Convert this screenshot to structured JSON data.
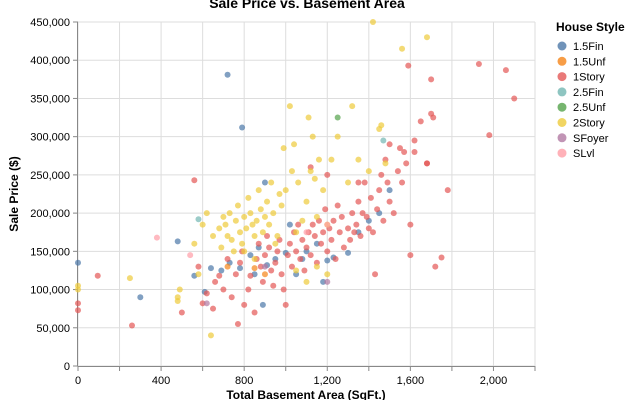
{
  "chart_data": {
    "type": "scatter",
    "title": "Sale Price vs. Basement Area",
    "xlabel": "Total Basement Area (SqFt.)",
    "ylabel": "Sale Price ($)",
    "xlim": [
      0,
      2200
    ],
    "ylim": [
      0,
      450000
    ],
    "x_ticks": [
      0,
      400,
      800,
      1200,
      1600,
      2000
    ],
    "x_tick_labels": [
      "0",
      "400",
      "800",
      "1,200",
      "1,600",
      "2,000"
    ],
    "y_ticks": [
      0,
      50000,
      100000,
      150000,
      200000,
      250000,
      300000,
      350000,
      400000,
      450000
    ],
    "y_tick_labels": [
      "0",
      "50,000",
      "100,000",
      "150,000",
      "200,000",
      "250,000",
      "300,000",
      "350,000",
      "400,000",
      "450,000"
    ],
    "grid": true,
    "legend_title": "House Style",
    "legend_position": "right",
    "series": [
      {
        "name": "1.5Fin",
        "color": "#4c78a8",
        "points": [
          [
            0,
            135000
          ],
          [
            300,
            90000
          ],
          [
            480,
            163000
          ],
          [
            560,
            118000
          ],
          [
            610,
            97000
          ],
          [
            640,
            128000
          ],
          [
            690,
            125000
          ],
          [
            720,
            381000
          ],
          [
            730,
            135000
          ],
          [
            780,
            128000
          ],
          [
            790,
            312000
          ],
          [
            830,
            145000
          ],
          [
            850,
            120000
          ],
          [
            870,
            155000
          ],
          [
            890,
            80000
          ],
          [
            900,
            240000
          ],
          [
            910,
            132000
          ],
          [
            950,
            140000
          ],
          [
            1000,
            148000
          ],
          [
            1020,
            185000
          ],
          [
            1050,
            120000
          ],
          [
            1080,
            140000
          ],
          [
            1100,
            150000
          ],
          [
            1150,
            160000
          ],
          [
            1200,
            138000
          ],
          [
            1230,
            142000
          ],
          [
            1300,
            148000
          ],
          [
            1350,
            175000
          ],
          [
            1400,
            190000
          ],
          [
            1450,
            200000
          ],
          [
            1500,
            230000
          ],
          [
            1180,
            110000
          ]
        ]
      },
      {
        "name": "1.5Unf",
        "color": "#f58518",
        "points": [
          [
            720,
            130000
          ],
          [
            850,
            128000
          ],
          [
            900,
            120000
          ]
        ]
      },
      {
        "name": "1Story",
        "color": "#e45756",
        "points": [
          [
            0,
            82000
          ],
          [
            0,
            73000
          ],
          [
            95,
            118000
          ],
          [
            260,
            53000
          ],
          [
            500,
            70000
          ],
          [
            560,
            243000
          ],
          [
            580,
            130000
          ],
          [
            600,
            82000
          ],
          [
            620,
            95000
          ],
          [
            650,
            75000
          ],
          [
            660,
            110000
          ],
          [
            680,
            118000
          ],
          [
            700,
            100000
          ],
          [
            720,
            140000
          ],
          [
            740,
            90000
          ],
          [
            760,
            120000
          ],
          [
            770,
            55000
          ],
          [
            780,
            135000
          ],
          [
            790,
            150000
          ],
          [
            800,
            80000
          ],
          [
            820,
            100000
          ],
          [
            830,
            118000
          ],
          [
            850,
            70000
          ],
          [
            860,
            140000
          ],
          [
            870,
            160000
          ],
          [
            880,
            130000
          ],
          [
            890,
            110000
          ],
          [
            900,
            145000
          ],
          [
            910,
            170000
          ],
          [
            920,
            155000
          ],
          [
            930,
            125000
          ],
          [
            940,
            105000
          ],
          [
            950,
            135000
          ],
          [
            960,
            150000
          ],
          [
            970,
            165000
          ],
          [
            980,
            120000
          ],
          [
            990,
            100000
          ],
          [
            1000,
            80000
          ],
          [
            1010,
            145000
          ],
          [
            1020,
            160000
          ],
          [
            1030,
            130000
          ],
          [
            1040,
            175000
          ],
          [
            1050,
            150000
          ],
          [
            1060,
            185000
          ],
          [
            1070,
            140000
          ],
          [
            1080,
            165000
          ],
          [
            1090,
            125000
          ],
          [
            1100,
            155000
          ],
          [
            1110,
            175000
          ],
          [
            1120,
            145000
          ],
          [
            1130,
            185000
          ],
          [
            1140,
            170000
          ],
          [
            1150,
            135000
          ],
          [
            1160,
            190000
          ],
          [
            1170,
            160000
          ],
          [
            1180,
            175000
          ],
          [
            1190,
            205000
          ],
          [
            1200,
            150000
          ],
          [
            1210,
            180000
          ],
          [
            1220,
            165000
          ],
          [
            1230,
            190000
          ],
          [
            1240,
            140000
          ],
          [
            1250,
            210000
          ],
          [
            1260,
            175000
          ],
          [
            1270,
            195000
          ],
          [
            1280,
            155000
          ],
          [
            1300,
            180000
          ],
          [
            1310,
            165000
          ],
          [
            1320,
            200000
          ],
          [
            1330,
            175000
          ],
          [
            1340,
            185000
          ],
          [
            1350,
            215000
          ],
          [
            1360,
            170000
          ],
          [
            1370,
            200000
          ],
          [
            1380,
            240000
          ],
          [
            1390,
            195000
          ],
          [
            1400,
            180000
          ],
          [
            1410,
            220000
          ],
          [
            1420,
            175000
          ],
          [
            1430,
            120000
          ],
          [
            1440,
            205000
          ],
          [
            1450,
            230000
          ],
          [
            1460,
            250000
          ],
          [
            1470,
            190000
          ],
          [
            1480,
            270000
          ],
          [
            1490,
            240000
          ],
          [
            1500,
            215000
          ],
          [
            1520,
            200000
          ],
          [
            1540,
            255000
          ],
          [
            1560,
            240000
          ],
          [
            1570,
            280000
          ],
          [
            1580,
            265000
          ],
          [
            1590,
            393000
          ],
          [
            1600,
            185000
          ],
          [
            1620,
            295000
          ],
          [
            1650,
            320000
          ],
          [
            1680,
            265000
          ],
          [
            1700,
            375000
          ],
          [
            1700,
            330000
          ],
          [
            1710,
            325000
          ],
          [
            1720,
            130000
          ],
          [
            1750,
            142000
          ],
          [
            1780,
            230000
          ],
          [
            1930,
            395000
          ],
          [
            1980,
            302000
          ],
          [
            2060,
            387000
          ],
          [
            2100,
            350000
          ],
          [
            1120,
            260000
          ],
          [
            1200,
            250000
          ],
          [
            1350,
            240000
          ],
          [
            1600,
            145000
          ],
          [
            1500,
            290000
          ],
          [
            1550,
            285000
          ],
          [
            1620,
            280000
          ],
          [
            1680,
            265000
          ]
        ]
      },
      {
        "name": "2.5Fin",
        "color": "#72b7b2",
        "points": [
          [
            580,
            192000
          ],
          [
            1470,
            295000
          ]
        ]
      },
      {
        "name": "2.5Unf",
        "color": "#54a24b",
        "points": [
          [
            1250,
            325000
          ]
        ]
      },
      {
        "name": "2Story",
        "color": "#eeca3b",
        "points": [
          [
            0,
            105000
          ],
          [
            0,
            100000
          ],
          [
            250,
            115000
          ],
          [
            480,
            90000
          ],
          [
            480,
            85000
          ],
          [
            490,
            100000
          ],
          [
            560,
            160000
          ],
          [
            580,
            120000
          ],
          [
            600,
            185000
          ],
          [
            620,
            200000
          ],
          [
            640,
            40000
          ],
          [
            650,
            170000
          ],
          [
            680,
            180000
          ],
          [
            690,
            155000
          ],
          [
            700,
            195000
          ],
          [
            710,
            185000
          ],
          [
            720,
            170000
          ],
          [
            730,
            200000
          ],
          [
            740,
            165000
          ],
          [
            750,
            150000
          ],
          [
            760,
            190000
          ],
          [
            770,
            210000
          ],
          [
            780,
            175000
          ],
          [
            790,
            160000
          ],
          [
            800,
            195000
          ],
          [
            810,
            180000
          ],
          [
            820,
            220000
          ],
          [
            830,
            200000
          ],
          [
            840,
            185000
          ],
          [
            850,
            170000
          ],
          [
            860,
            190000
          ],
          [
            870,
            230000
          ],
          [
            880,
            205000
          ],
          [
            890,
            175000
          ],
          [
            900,
            195000
          ],
          [
            910,
            215000
          ],
          [
            920,
            185000
          ],
          [
            930,
            240000
          ],
          [
            940,
            200000
          ],
          [
            950,
            160000
          ],
          [
            960,
            170000
          ],
          [
            970,
            225000
          ],
          [
            980,
            210000
          ],
          [
            990,
            285000
          ],
          [
            1000,
            230000
          ],
          [
            1020,
            340000
          ],
          [
            1030,
            255000
          ],
          [
            1040,
            290000
          ],
          [
            1050,
            175000
          ],
          [
            1060,
            240000
          ],
          [
            1080,
            190000
          ],
          [
            1100,
            215000
          ],
          [
            1110,
            325000
          ],
          [
            1120,
            255000
          ],
          [
            1130,
            300000
          ],
          [
            1140,
            245000
          ],
          [
            1150,
            195000
          ],
          [
            1160,
            270000
          ],
          [
            1180,
            230000
          ],
          [
            1200,
            185000
          ],
          [
            1220,
            270000
          ],
          [
            1250,
            300000
          ],
          [
            1300,
            240000
          ],
          [
            1320,
            340000
          ],
          [
            1350,
            270000
          ],
          [
            1400,
            255000
          ],
          [
            1420,
            450000
          ],
          [
            1450,
            310000
          ],
          [
            1460,
            315000
          ],
          [
            1480,
            265000
          ],
          [
            1560,
            415000
          ],
          [
            1680,
            430000
          ],
          [
            1100,
            110000
          ],
          [
            1150,
            130000
          ],
          [
            1200,
            120000
          ],
          [
            800,
            150000
          ],
          [
            850,
            140000
          ],
          [
            1050,
            125000
          ]
        ]
      },
      {
        "name": "SFoyer",
        "color": "#b279a2",
        "points": [
          [
            620,
            82000
          ],
          [
            900,
            130000
          ],
          [
            1200,
            110000
          ]
        ]
      },
      {
        "name": "SLvl",
        "color": "#ff9da6",
        "points": [
          [
            380,
            168000
          ],
          [
            540,
            145000
          ],
          [
            1100,
            175000
          ],
          [
            1200,
            185000
          ]
        ]
      }
    ]
  }
}
